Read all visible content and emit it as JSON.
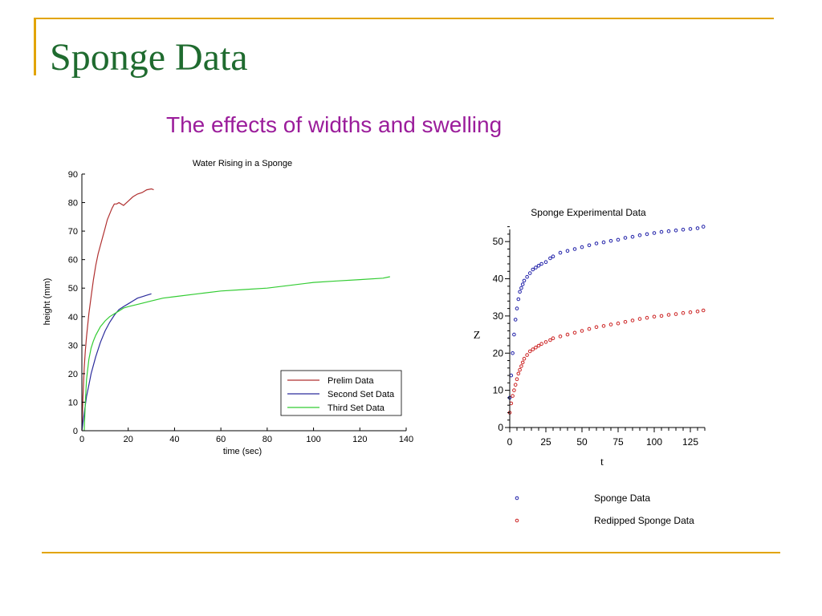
{
  "slide": {
    "title": "Sponge Data",
    "subtitle": "The effects of widths and swelling"
  },
  "colors": {
    "accent_line": "#e2a400",
    "title": "#1f6b2f",
    "subtitle": "#9b1d9b"
  },
  "chart_data": [
    {
      "type": "line",
      "title": "Water Rising in a Sponge",
      "xlabel": "time (sec)",
      "ylabel": "height (mm)",
      "xlim": [
        0,
        140
      ],
      "ylim": [
        0,
        90
      ],
      "xticks": [
        0,
        20,
        40,
        60,
        80,
        100,
        120,
        140
      ],
      "yticks": [
        0,
        10,
        20,
        30,
        40,
        50,
        60,
        70,
        80,
        90
      ],
      "grid": false,
      "legend_position": "bottom-right",
      "series": [
        {
          "name": "Prelim Data",
          "color": "#b03030",
          "x": [
            0,
            0.5,
            1,
            1.5,
            2,
            3,
            4,
            5,
            6,
            7,
            8,
            9,
            10,
            11,
            12,
            13,
            14,
            15,
            16,
            18,
            20,
            22,
            24,
            26,
            28,
            30,
            31
          ],
          "y": [
            0,
            12,
            22,
            28,
            33,
            41,
            47,
            53,
            58,
            62,
            65,
            68,
            71,
            74,
            76,
            78,
            79.5,
            79.5,
            80,
            79,
            80.5,
            82,
            83,
            83.5,
            84.5,
            84.8,
            84.5
          ]
        },
        {
          "name": "Second Set Data",
          "color": "#2c2c9c",
          "x": [
            0,
            0.5,
            1,
            1.5,
            2,
            3,
            4,
            5,
            6,
            7,
            8,
            9,
            10,
            12,
            14,
            16,
            18,
            20,
            22,
            24,
            26,
            28,
            30
          ],
          "y": [
            0,
            3,
            6,
            9,
            12,
            16,
            20,
            23,
            26,
            28.5,
            31,
            33,
            35,
            38,
            40.5,
            42.5,
            43.5,
            44.5,
            45.5,
            46.5,
            47,
            47.5,
            48
          ]
        },
        {
          "name": "Third Set Data",
          "color": "#33cc33",
          "x": [
            1,
            1.5,
            2,
            3,
            4,
            5,
            6,
            7,
            8,
            9,
            10,
            12,
            14,
            16,
            18,
            20,
            25,
            30,
            35,
            40,
            50,
            60,
            70,
            80,
            90,
            100,
            110,
            120,
            130,
            133
          ],
          "y": [
            0,
            10,
            18,
            25,
            29,
            31.5,
            33.5,
            35,
            36.5,
            37.5,
            38.5,
            40,
            41,
            42,
            43,
            43.5,
            44.5,
            45.5,
            46.5,
            47,
            48,
            49,
            49.5,
            50,
            51,
            52,
            52.5,
            53,
            53.5,
            54
          ]
        }
      ]
    },
    {
      "type": "scatter",
      "title": "Sponge Experimental Data",
      "xlabel": "t",
      "ylabel": "Z",
      "xlim": [
        0,
        135
      ],
      "ylim": [
        0,
        55
      ],
      "xticks": [
        0,
        25,
        50,
        75,
        100,
        125
      ],
      "yticks": [
        0,
        10,
        20,
        30,
        40,
        50
      ],
      "grid": false,
      "legend_position": "below",
      "series": [
        {
          "name": "Sponge Data",
          "color": "#1f1fa8",
          "x": [
            0,
            1,
            2,
            3,
            4,
            5,
            6,
            7,
            8,
            9,
            10,
            12,
            14,
            16,
            18,
            20,
            22,
            25,
            28,
            30,
            35,
            40,
            45,
            50,
            55,
            60,
            65,
            70,
            75,
            80,
            85,
            90,
            95,
            100,
            105,
            110,
            115,
            120,
            125,
            130,
            134
          ],
          "y": [
            8,
            14,
            20,
            25,
            29,
            32,
            34.5,
            36.5,
            37.5,
            38.5,
            39.5,
            40.5,
            41.5,
            42.5,
            43,
            43.5,
            44,
            44.5,
            45.5,
            46,
            47,
            47.5,
            48,
            48.5,
            49,
            49.5,
            49.8,
            50.2,
            50.5,
            51,
            51.3,
            51.7,
            52,
            52.3,
            52.6,
            52.8,
            53,
            53.2,
            53.4,
            53.6,
            54
          ]
        },
        {
          "name": "Redipped Sponge Data",
          "color": "#cc2222",
          "x": [
            0,
            1,
            2,
            3,
            4,
            5,
            6,
            7,
            8,
            9,
            10,
            12,
            14,
            16,
            18,
            20,
            22,
            25,
            28,
            30,
            35,
            40,
            45,
            50,
            55,
            60,
            65,
            70,
            75,
            80,
            85,
            90,
            95,
            100,
            105,
            110,
            115,
            120,
            125,
            130,
            134
          ],
          "y": [
            4,
            6.5,
            8.5,
            10,
            11.5,
            13,
            14.5,
            15.5,
            16.5,
            17.5,
            18.5,
            19.5,
            20.5,
            21,
            21.5,
            22,
            22.5,
            23,
            23.5,
            24,
            24.5,
            25,
            25.5,
            26,
            26.5,
            27,
            27.3,
            27.7,
            28,
            28.4,
            28.8,
            29.2,
            29.5,
            29.8,
            30,
            30.3,
            30.5,
            30.8,
            31,
            31.2,
            31.5
          ]
        }
      ]
    }
  ]
}
